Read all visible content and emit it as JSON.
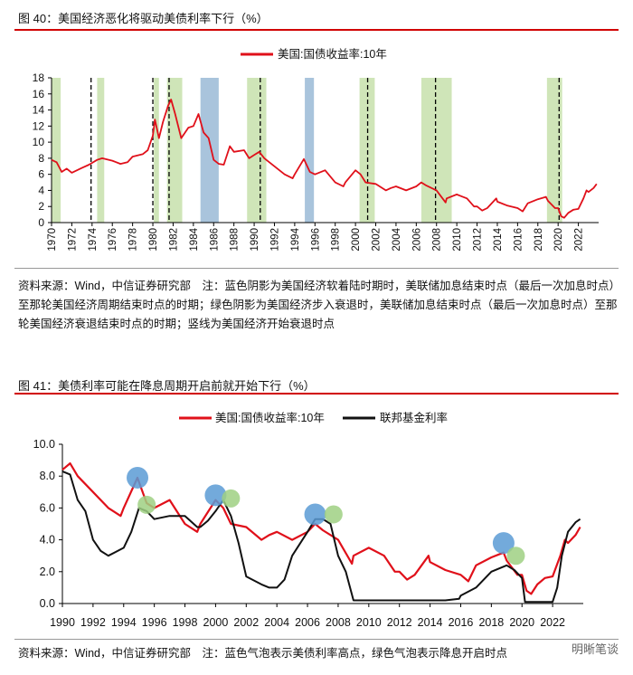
{
  "figure40": {
    "caption": "图 40：美国经济恶化将驱动美债利率下行（%）",
    "source_note": "资料来源：Wind，中信证券研究部　注：蓝色阴影为美国经济软着陆时期时，美联储加息结束时点（最后一次加息时点）至那轮美国经济周期结束时点的时期；绿色阴影为美国经济步入衰退时，美联储加息结束时点（最后一次加息时点）至那轮美国经济衰退结束时点的时期；竖线为美国经济开始衰退时点"
  },
  "figure41": {
    "caption": "图 41：美债利率可能在降息周期开启前就开始下行（%）",
    "source_note": "资料来源：Wind，中信证券研究部　注：蓝色气泡表示美债利率高点，绿色气泡表示降息开启时点"
  },
  "watermark": "明晰笔谈",
  "colors": {
    "red": "#e0101a",
    "black": "#111111",
    "blue_shade": "#a9c4dc",
    "green_shade": "#cfe5b8",
    "blue_bubble": "#5b9bd5",
    "green_bubble": "#9fd082",
    "rule": "#d10000"
  },
  "chart_data": [
    {
      "type": "line",
      "title": "",
      "legend": [
        "美国:国债收益率:10年"
      ],
      "xlim": [
        1970,
        2024
      ],
      "ylim": [
        0,
        18
      ],
      "yticks": [
        "0",
        "2",
        "4",
        "6",
        "8",
        "10",
        "12",
        "14",
        "16",
        "18"
      ],
      "xticks": [
        "1970",
        "1972",
        "1974",
        "1976",
        "1978",
        "1980",
        "1982",
        "1984",
        "1986",
        "1988",
        "1990",
        "1992",
        "1994",
        "1996",
        "1998",
        "2000",
        "2002",
        "2004",
        "2006",
        "2008",
        "2010",
        "2012",
        "2014",
        "2016",
        "2018",
        "2020",
        "2022"
      ],
      "series": [
        {
          "name": "美国:国债收益率:10年",
          "x": [
            1970,
            1970.5,
            1971,
            1971.5,
            1972,
            1973,
            1973.7,
            1974.5,
            1975,
            1976,
            1976.8,
            1977.5,
            1978,
            1979,
            1979.5,
            1980,
            1980.2,
            1980.6,
            1981,
            1981.5,
            1981.8,
            1982.2,
            1982.8,
            1983.5,
            1984,
            1984.5,
            1985,
            1985.5,
            1986,
            1986.5,
            1987,
            1987.6,
            1988,
            1989,
            1989.5,
            1990,
            1990.5,
            1991,
            1992,
            1993,
            1993.8,
            1994,
            1994.9,
            1995.5,
            1996,
            1997,
            1998,
            1998.8,
            1999,
            2000,
            2000.5,
            2001,
            2002,
            2003,
            2003.5,
            2004,
            2005,
            2006,
            2006.5,
            2007,
            2008,
            2008.9,
            2009,
            2010,
            2011,
            2011.7,
            2012,
            2012.5,
            2013,
            2013.9,
            2014,
            2015,
            2016,
            2016.5,
            2017,
            2018,
            2018.8,
            2019,
            2019.7,
            2020,
            2020.3,
            2020.6,
            2021,
            2021.5,
            2022,
            2022.5,
            2022.8,
            2023,
            2023.5,
            2023.8
          ],
          "values": [
            7.8,
            7.5,
            6.3,
            6.7,
            6.2,
            6.8,
            7.2,
            7.8,
            8.0,
            7.7,
            7.3,
            7.5,
            8.2,
            8.5,
            9.0,
            10.8,
            12.8,
            10.5,
            12.5,
            14.5,
            15.3,
            13.5,
            10.5,
            11.8,
            12.0,
            13.5,
            11.2,
            10.5,
            7.8,
            7.3,
            7.2,
            9.5,
            8.8,
            9.0,
            8.0,
            8.4,
            8.8,
            8.0,
            7.0,
            6.0,
            5.5,
            6.0,
            7.9,
            6.3,
            6.0,
            6.5,
            5.0,
            4.5,
            5.0,
            6.5,
            6.0,
            5.0,
            4.8,
            4.0,
            4.3,
            4.5,
            4.0,
            4.5,
            5.0,
            4.6,
            4.0,
            2.5,
            3.0,
            3.5,
            3.0,
            2.0,
            2.0,
            1.5,
            1.8,
            3.0,
            2.6,
            2.1,
            1.8,
            1.4,
            2.4,
            2.9,
            3.2,
            2.7,
            1.8,
            1.8,
            0.8,
            0.6,
            1.2,
            1.6,
            1.7,
            3.0,
            4.0,
            3.8,
            4.3,
            4.8
          ]
        }
      ],
      "shaded_regions": [
        {
          "color": "green",
          "from": 1969.8,
          "to": 1970.9
        },
        {
          "color": "green",
          "from": 1974.5,
          "to": 1975.2
        },
        {
          "color": "green",
          "from": 1980.1,
          "to": 1980.6
        },
        {
          "color": "green",
          "from": 1981.4,
          "to": 1982.9
        },
        {
          "color": "blue",
          "from": 1984.7,
          "to": 1986.5
        },
        {
          "color": "green",
          "from": 1989.3,
          "to": 1991.2
        },
        {
          "color": "blue",
          "from": 1995.0,
          "to": 1995.9
        },
        {
          "color": "green",
          "from": 2000.4,
          "to": 2001.9
        },
        {
          "color": "green",
          "from": 2006.5,
          "to": 2009.5
        },
        {
          "color": "green",
          "from": 2018.9,
          "to": 2020.4
        }
      ],
      "recession_start_lines": [
        1973.9,
        1980.0,
        1981.6,
        1990.6,
        2001.2,
        2007.9,
        2020.1
      ]
    },
    {
      "type": "line",
      "title": "",
      "legend": [
        "美国:国债收益率:10年",
        "联邦基金利率"
      ],
      "xlim": [
        1990,
        2024
      ],
      "ylim": [
        0,
        10
      ],
      "yticks": [
        "0.0",
        "2.0",
        "4.0",
        "6.0",
        "8.0",
        "10.0"
      ],
      "xticks": [
        "1990",
        "1992",
        "1994",
        "1996",
        "1998",
        "2000",
        "2002",
        "2004",
        "2006",
        "2008",
        "2010",
        "2012",
        "2014",
        "2016",
        "2018",
        "2020",
        "2022"
      ],
      "series": [
        {
          "name": "美国:国债收益率:10年",
          "x": [
            1990,
            1990.5,
            1991,
            1992,
            1993,
            1993.8,
            1994,
            1994.9,
            1995.5,
            1996,
            1997,
            1998,
            1998.8,
            1999,
            2000,
            2000.5,
            2001,
            2002,
            2003,
            2003.5,
            2004,
            2005,
            2006,
            2006.5,
            2007,
            2008,
            2008.9,
            2009,
            2010,
            2011,
            2011.7,
            2012,
            2012.5,
            2013,
            2013.9,
            2014,
            2015,
            2016,
            2016.5,
            2017,
            2018,
            2018.8,
            2019,
            2019.7,
            2020,
            2020.3,
            2020.6,
            2021,
            2021.5,
            2022,
            2022.5,
            2022.8,
            2023,
            2023.5,
            2023.8
          ],
          "values": [
            8.4,
            8.8,
            8.0,
            7.0,
            6.0,
            5.5,
            6.0,
            7.9,
            6.3,
            6.0,
            6.5,
            5.0,
            4.5,
            5.0,
            6.5,
            6.0,
            5.0,
            4.8,
            4.0,
            4.3,
            4.5,
            4.0,
            4.5,
            5.0,
            4.6,
            4.0,
            2.5,
            3.0,
            3.5,
            3.0,
            2.0,
            2.0,
            1.5,
            1.8,
            3.0,
            2.6,
            2.1,
            1.8,
            1.4,
            2.4,
            2.9,
            3.2,
            2.7,
            1.8,
            1.8,
            0.8,
            0.6,
            1.2,
            1.6,
            1.7,
            3.0,
            4.0,
            3.8,
            4.3,
            4.8
          ]
        },
        {
          "name": "联邦基金利率",
          "x": [
            1990,
            1990.5,
            1991,
            1991.5,
            1992,
            1992.5,
            1993,
            1994,
            1994.5,
            1995,
            1995.5,
            1996,
            1997,
            1998,
            1998.8,
            1999,
            1999.5,
            2000,
            2000.5,
            2001,
            2001.5,
            2002,
            2003,
            2003.5,
            2004,
            2004.5,
            2005,
            2006,
            2006.5,
            2007,
            2007.5,
            2008,
            2008.5,
            2009,
            2015,
            2015.9,
            2016,
            2017,
            2018,
            2019,
            2019.5,
            2020,
            2020.2,
            2022,
            2022.3,
            2022.6,
            2023,
            2023.5,
            2023.8
          ],
          "values": [
            8.3,
            8.1,
            6.5,
            5.8,
            4.0,
            3.3,
            3.0,
            3.5,
            4.5,
            6.0,
            5.8,
            5.3,
            5.5,
            5.5,
            4.8,
            4.8,
            5.2,
            5.8,
            6.5,
            5.5,
            3.8,
            1.7,
            1.2,
            1.0,
            1.0,
            1.5,
            3.0,
            4.5,
            5.3,
            5.3,
            5.0,
            3.0,
            2.0,
            0.2,
            0.2,
            0.3,
            0.5,
            1.0,
            2.0,
            2.4,
            2.1,
            1.6,
            0.1,
            0.1,
            1.0,
            3.0,
            4.5,
            5.1,
            5.3
          ]
        }
      ],
      "bubbles": [
        {
          "color": "blue",
          "x": 1994.9,
          "y": 7.9
        },
        {
          "color": "green",
          "x": 1995.5,
          "y": 6.2
        },
        {
          "color": "blue",
          "x": 2000.0,
          "y": 6.8
        },
        {
          "color": "green",
          "x": 2001.0,
          "y": 6.6
        },
        {
          "color": "blue",
          "x": 2006.5,
          "y": 5.6
        },
        {
          "color": "green",
          "x": 2007.7,
          "y": 5.6
        },
        {
          "color": "blue",
          "x": 2018.8,
          "y": 3.8
        },
        {
          "color": "green",
          "x": 2019.6,
          "y": 3.0
        }
      ]
    }
  ]
}
